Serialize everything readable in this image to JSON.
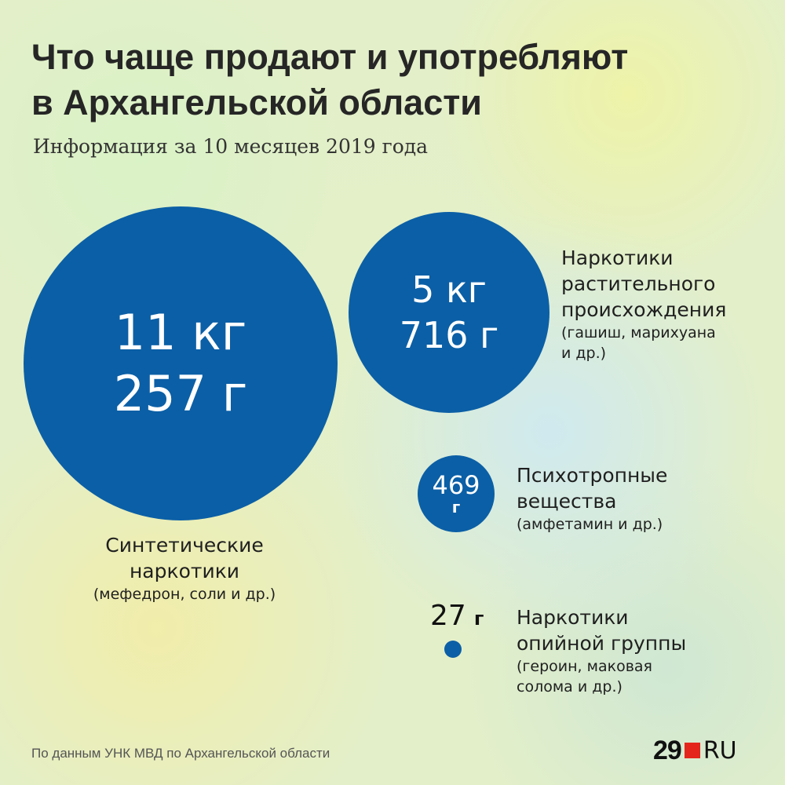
{
  "header": {
    "title_line1": "Что чаще продают и употребляют",
    "title_line2": "в Архангельской области",
    "subtitle": "Информация за 10 месяцев 2019 года"
  },
  "chart_data": {
    "type": "bubble",
    "title": "Что чаще продают и употребляют в Архангельской области",
    "subtitle": "Информация за 10 месяцев 2019 года",
    "unit": "г",
    "series": [
      {
        "name": "Синтетические наркотики",
        "note": "(мефедрон, соли и др.)",
        "value_g": 11257,
        "label_line1": "11 кг",
        "label_line2": "257 г"
      },
      {
        "name": "Наркотики растительного происхождения",
        "note": "(гашиш, марихуана и др.)",
        "value_g": 5716,
        "label_line1": "5 кг",
        "label_line2": "716 г"
      },
      {
        "name": "Психотропные вещества",
        "note": "(амфетамин и др.)",
        "value_g": 469,
        "label_line1": "469",
        "label_line2": "г"
      },
      {
        "name": "Наркотики опийной группы",
        "note": "(героин, маковая солома и др.)",
        "value_g": 27,
        "label_line1": "27",
        "label_line2": "г"
      }
    ],
    "colors": {
      "bubble": "#0b5fa6"
    }
  },
  "labels": {
    "synthetic": {
      "line1": "Синтетические",
      "line2": "наркотики",
      "note": "(мефедрон, соли и др.)"
    },
    "plant": {
      "line1": "Наркотики",
      "line2": "растительного",
      "line3": "происхождения",
      "note1": "(гашиш, марихуана",
      "note2": "и др.)"
    },
    "psycho": {
      "line1": "Психотропные",
      "line2": "вещества",
      "note": "(амфетамин и др.)"
    },
    "opium": {
      "line1": "Наркотики",
      "line2": "опийной группы",
      "note1": "(героин, маковая",
      "note2": "солома и др.)"
    }
  },
  "footer": {
    "source": "По данным УНК МВД по Архангельской области",
    "logo_number": "29",
    "logo_suffix": "RU"
  },
  "icons": {
    "logo_square": "red-square-icon"
  }
}
